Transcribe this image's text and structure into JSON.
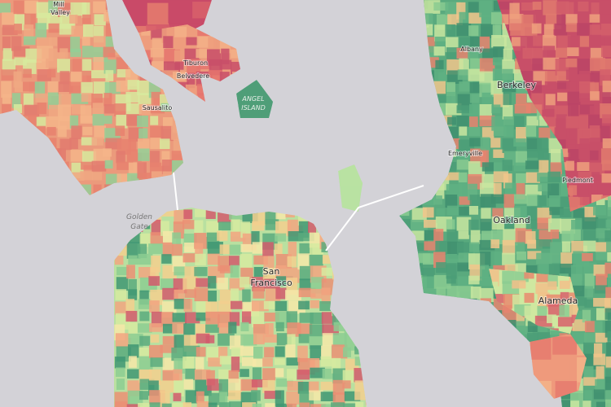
{
  "places": [
    {
      "lines": [
        "Mill",
        "Valley"
      ]
    },
    {
      "lines": [
        "Tiburon"
      ]
    },
    {
      "lines": [
        "Belvedere"
      ]
    },
    {
      "lines": [
        "ANGEL",
        "ISLAND"
      ]
    },
    {
      "lines": [
        "Sausalito"
      ]
    },
    {
      "lines": [
        "Golden",
        "Gate"
      ]
    },
    {
      "lines": [
        "Albany"
      ]
    },
    {
      "lines": [
        "Berkeley"
      ]
    },
    {
      "lines": [
        "Emeryville"
      ]
    },
    {
      "lines": [
        "Piedmont"
      ]
    },
    {
      "lines": [
        "Oakland"
      ]
    },
    {
      "lines": [
        "San",
        "Francisco"
      ]
    },
    {
      "lines": [
        "Alameda"
      ]
    }
  ]
}
